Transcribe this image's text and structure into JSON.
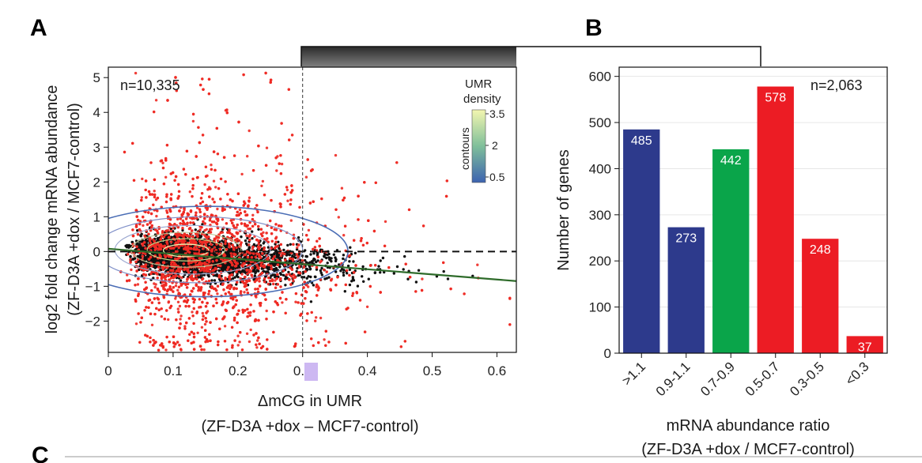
{
  "figure": {
    "panel_a_letter": "A",
    "panel_b_letter": "B",
    "panel_c_letter": "C",
    "highlighted_tick": "0.3"
  },
  "chart_data": [
    {
      "type": "scatter",
      "panel": "A",
      "annotation": "n=10,335",
      "xlabel": "ΔmCG in UMR",
      "xlabel_sub": "(ZF-D3A +dox – MCF7-control)",
      "ylabel": "log2 fold change mRNA abundance",
      "ylabel_sub": "(ZF-D3A +dox / MCF7-control)",
      "xlim": [
        0,
        0.63
      ],
      "ylim": [
        -2.9,
        5.3
      ],
      "xticks": [
        "0",
        "0.1",
        "0.2",
        "0.3",
        "0.4",
        "0.5",
        "0.6"
      ],
      "yticks": [
        "−2",
        "−1",
        "0",
        "1",
        "2",
        "3",
        "4",
        "5"
      ],
      "threshold_x": 0.3,
      "zero_line_y": 0,
      "fit_line": {
        "x": [
          0,
          0.63
        ],
        "y": [
          0.08,
          -0.85
        ]
      },
      "legend": {
        "title_line1": "UMR",
        "title_line2": "density",
        "axis_label": "contours",
        "ticks": [
          "3.5",
          "2",
          "0.5"
        ],
        "position": "top-right"
      },
      "colors": {
        "significant": "#ee2a24",
        "nonsignificant": "#111111",
        "contour": "#4a6db5",
        "contour_inner": "#c9d98a",
        "fit": "#2e6b2a",
        "gradient_low": "#3d63b0",
        "gradient_mid": "#7fbf9a",
        "gradient_high": "#f3f6b0"
      }
    },
    {
      "type": "bar",
      "panel": "B",
      "annotation": "n=2,063",
      "categories": [
        ">1.1",
        "0.9-1.1",
        "0.7-0.9",
        "0.5-0.7",
        "0.3-0.5",
        "<0.3"
      ],
      "values": [
        485,
        273,
        442,
        578,
        248,
        37
      ],
      "value_labels": [
        "485",
        "273",
        "442",
        "578",
        "248",
        "37"
      ],
      "bar_colors": [
        "#2d3a8c",
        "#2d3a8c",
        "#0aa54a",
        "#ec1c24",
        "#ec1c24",
        "#ec1c24"
      ],
      "xlabel": "mRNA abundance ratio",
      "xlabel_sub": "(ZF-D3A +dox / MCF7-control)",
      "ylabel": "Number of genes",
      "ylim": [
        0,
        620
      ],
      "yticks": [
        "0",
        "100",
        "200",
        "300",
        "400",
        "500",
        "600"
      ],
      "grid": true
    }
  ]
}
